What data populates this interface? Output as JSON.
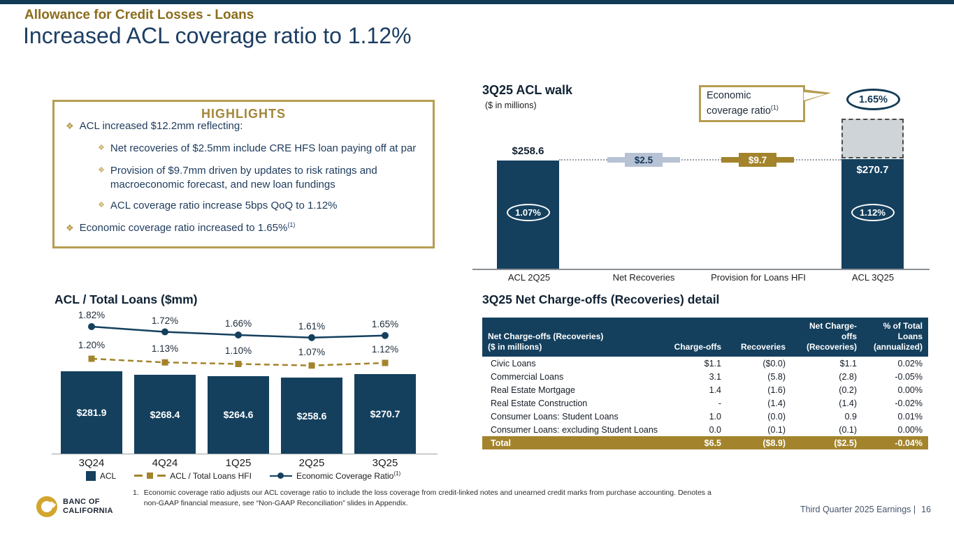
{
  "slide": {
    "kicker": "Allowance for Credit Losses - Loans",
    "title": "Increased ACL coverage ratio to 1.12%",
    "footer_right": "Third Quarter 2025 Earnings |",
    "page_number": "16",
    "footnote_marker": "1.",
    "footnote_text": "Economic coverage ratio adjusts our ACL coverage ratio to include the loss coverage from credit-linked notes and unearned credit marks from purchase accounting. Denotes a non-GAAP financial measure, see “Non-GAAP Reconciliation” slides in Appendix.",
    "logo_line1": "BANC OF",
    "logo_line2": "CALIFORNIA"
  },
  "refs": {
    "sup1": "(1)"
  },
  "icons": {
    "bullet_diamond": "❖"
  },
  "colors": {
    "navy": "#14405e",
    "gold": "#a3842c",
    "gold_border": "#b69d52",
    "kicker_gold": "#8c6d1c",
    "step_blue": "#b7c3d4",
    "projection_gray": "#cfd4d9"
  },
  "highlights": {
    "title": "HIGHLIGHTS",
    "bullet1": "ACL increased $12.2mm reflecting:",
    "sub_bullets": [
      "Net recoveries of $2.5mm include CRE HFS loan paying off at par",
      "Provision of $9.7mm driven by updates to risk ratings and macroeconomic forecast, and new loan fundings",
      "ACL coverage ratio increase 5bps QoQ to 1.12%"
    ],
    "bullet2": "Economic coverage ratio increased to 1.65%"
  },
  "walk": {
    "subtitle": "($ in millions)",
    "callout_line1": "Economic",
    "callout_line2": "coverage ratio",
    "econ_ratio": "1.65%",
    "bar1_value": "$258.6",
    "bar1_ratio": "1.07%",
    "step1_value": "$2.5",
    "step2_value": "$9.7",
    "bar2_value": "$270.7",
    "bar2_ratio": "1.12%"
  },
  "legend": {
    "acl": "ACL",
    "hfi": "ACL / Total Loans HFI",
    "econ": "Economic Coverage Ratio"
  },
  "nco_table": {
    "title": "3Q25 Net Charge-offs (Recoveries) detail",
    "col1_header": "Net Charge-offs (Recoveries)\n($ in millions)",
    "headers": [
      "Charge-offs",
      "Recoveries",
      "Net Charge-offs\n(Recoveries)",
      "% of Total\nLoans\n(annualized)"
    ],
    "rows": [
      [
        "Civic Loans",
        "$1.1",
        "($0.0)",
        "$1.1",
        "0.02%"
      ],
      [
        "Commercial Loans",
        "3.1",
        "(5.8)",
        "(2.8)",
        "-0.05%"
      ],
      [
        "Real Estate Mortgage",
        "1.4",
        "(1.6)",
        "(0.2)",
        "0.00%"
      ],
      [
        "Real Estate Construction",
        "-",
        "(1.4)",
        "(1.4)",
        "-0.02%"
      ],
      [
        "Consumer Loans: Student Loans",
        "1.0",
        "(0.0)",
        "0.9",
        "0.01%"
      ],
      [
        "Consumer Loans: excluding Student Loans",
        "0.0",
        "(0.1)",
        "(0.1)",
        "0.00%"
      ]
    ],
    "total_row": [
      "Total",
      "$6.5",
      "($8.9)",
      "($2.5)",
      "-0.04%"
    ]
  },
  "chart_data": [
    {
      "type": "bar",
      "subtype": "waterfall",
      "title": "3Q25 ACL walk",
      "unit": "$ in millions",
      "categories": [
        "ACL 2Q25",
        "Net Recoveries",
        "Provision for Loans HFI",
        "ACL 3Q25"
      ],
      "values": [
        258.6,
        2.5,
        9.7,
        270.7
      ],
      "coverage_ratios": [
        "1.07%",
        null,
        null,
        "1.12%"
      ],
      "economic_coverage_ratio_3q25": "1.65%"
    },
    {
      "type": "bar",
      "subtype": "bar-with-lines",
      "title": "ACL / Total Loans ($mm)",
      "categories": [
        "3Q24",
        "4Q24",
        "1Q25",
        "2Q25",
        "3Q25"
      ],
      "series": [
        {
          "name": "ACL",
          "type": "bar",
          "unit": "$mm",
          "values": [
            281.9,
            268.4,
            264.6,
            258.6,
            270.7
          ]
        },
        {
          "name": "ACL / Total Loans HFI",
          "type": "line",
          "unit": "%",
          "values": [
            1.2,
            1.13,
            1.1,
            1.07,
            1.12
          ]
        },
        {
          "name": "Economic Coverage Ratio",
          "type": "line",
          "unit": "%",
          "values": [
            1.82,
            1.72,
            1.66,
            1.61,
            1.65
          ]
        }
      ],
      "legend_position": "bottom"
    }
  ]
}
